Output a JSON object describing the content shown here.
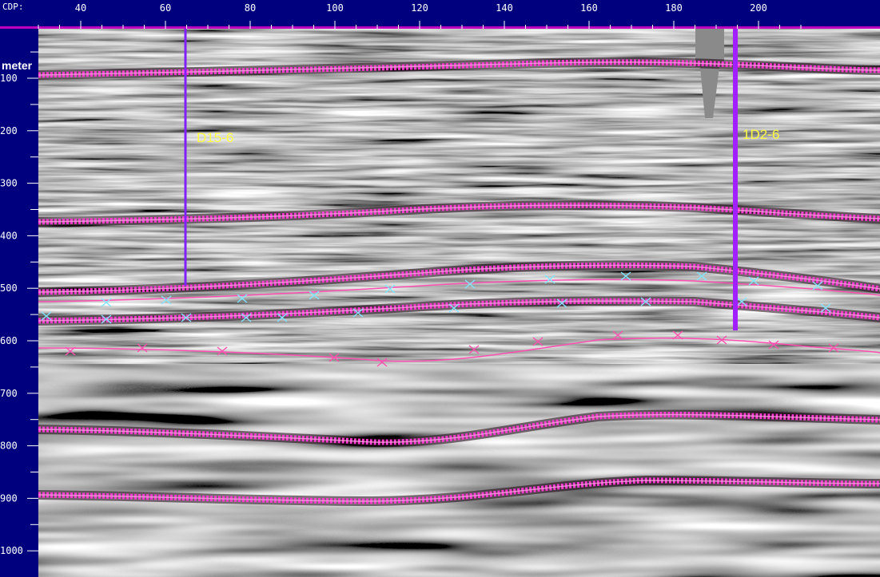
{
  "axes": {
    "cdp_label": "CDP:",
    "cdp_ticks": [
      "40",
      "60",
      "80",
      "100",
      "120",
      "140",
      "160",
      "180",
      "200"
    ],
    "depth_label": "meter",
    "depth_ticks": [
      "100",
      "200",
      "300",
      "400",
      "500",
      "600",
      "700",
      "800",
      "900",
      "1000"
    ]
  },
  "wells": [
    {
      "name": "D15-6",
      "color": "#8020ff"
    },
    {
      "name": "1D2-6",
      "color": "#a020ff"
    }
  ],
  "colors": {
    "horizon": "#ff3ccf",
    "horizon_thin": "#ff4fb0",
    "pick_markers": "#7fe6ff",
    "axis_bg": "#00007f",
    "axis_border": "#c000c0"
  }
}
